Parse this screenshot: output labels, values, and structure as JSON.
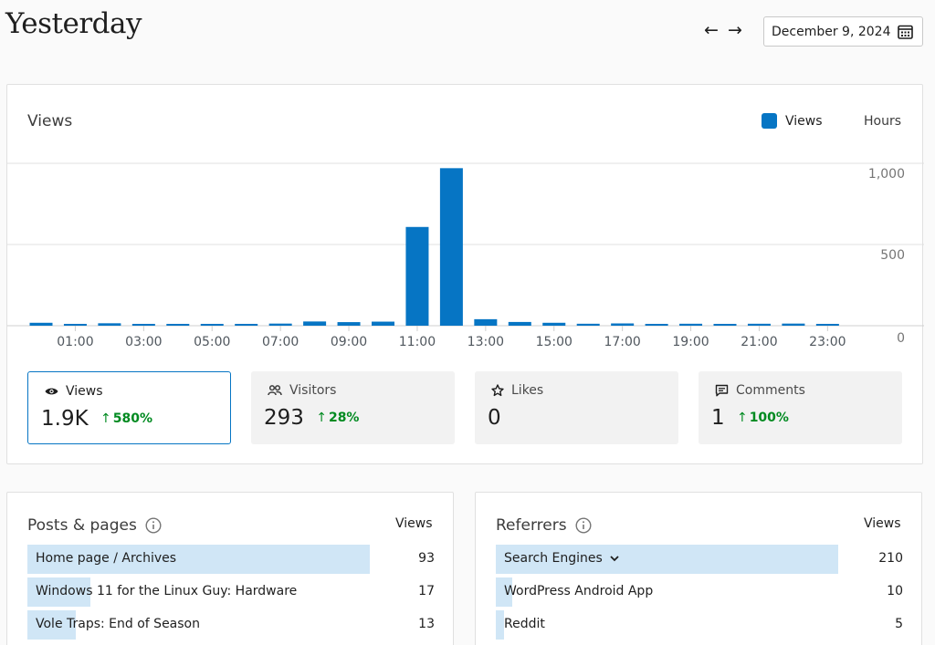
{
  "header": {
    "title": "Yesterday",
    "prev_arrow": "←",
    "next_arrow": "→",
    "date": "December 9, 2024",
    "calendar_icon": "calendar-icon"
  },
  "chart_card": {
    "title": "Views",
    "legend_label": "Views",
    "legend_color": "#0675c4",
    "period_label": "Hours"
  },
  "chart_data": {
    "type": "bar",
    "categories": [
      "00:00",
      "01:00",
      "02:00",
      "03:00",
      "04:00",
      "05:00",
      "06:00",
      "07:00",
      "08:00",
      "09:00",
      "10:00",
      "11:00",
      "12:00",
      "13:00",
      "14:00",
      "15:00",
      "16:00",
      "17:00",
      "18:00",
      "19:00",
      "20:00",
      "21:00",
      "22:00",
      "23:00"
    ],
    "x_tick_labels": [
      "01:00",
      "03:00",
      "05:00",
      "07:00",
      "09:00",
      "11:00",
      "13:00",
      "15:00",
      "17:00",
      "19:00",
      "21:00",
      "23:00"
    ],
    "y_tick_labels": [
      "0",
      "500",
      "1,000"
    ],
    "series": [
      {
        "name": "Views",
        "color": "#0675c4",
        "values": [
          18,
          6,
          15,
          10,
          10,
          10,
          8,
          13,
          26,
          22,
          25,
          608,
          970,
          40,
          23,
          18,
          12,
          14,
          10,
          12,
          10,
          12,
          13,
          10
        ]
      }
    ],
    "ylim": [
      0,
      1000
    ],
    "grid": true
  },
  "stats": [
    {
      "label": "Views",
      "value": "1.9K",
      "change": "580%",
      "icon": "eye-icon",
      "active": true
    },
    {
      "label": "Visitors",
      "value": "293",
      "change": "28%",
      "icon": "people-icon",
      "active": false
    },
    {
      "label": "Likes",
      "value": "0",
      "change": "",
      "icon": "star-icon",
      "active": false
    },
    {
      "label": "Comments",
      "value": "1",
      "change": "100%",
      "icon": "comment-icon",
      "active": false
    }
  ],
  "posts": {
    "title": "Posts & pages",
    "info_icon": "info-icon",
    "column": "Views",
    "rows": [
      {
        "label": "Home page / Archives",
        "value": "93",
        "fraction": 1.0
      },
      {
        "label": "Windows 11 for the Linux Guy: Hardware",
        "value": "17",
        "fraction": 0.183
      },
      {
        "label": "Vole Traps: End of Season",
        "value": "13",
        "fraction": 0.14
      }
    ]
  },
  "referrers": {
    "title": "Referrers",
    "info_icon": "info-icon",
    "column": "Views",
    "rows": [
      {
        "label": "Search Engines",
        "value": "210",
        "fraction": 1.0,
        "expandable": true
      },
      {
        "label": "WordPress Android App",
        "value": "10",
        "fraction": 0.048
      },
      {
        "label": "Reddit",
        "value": "5",
        "fraction": 0.024
      }
    ]
  }
}
